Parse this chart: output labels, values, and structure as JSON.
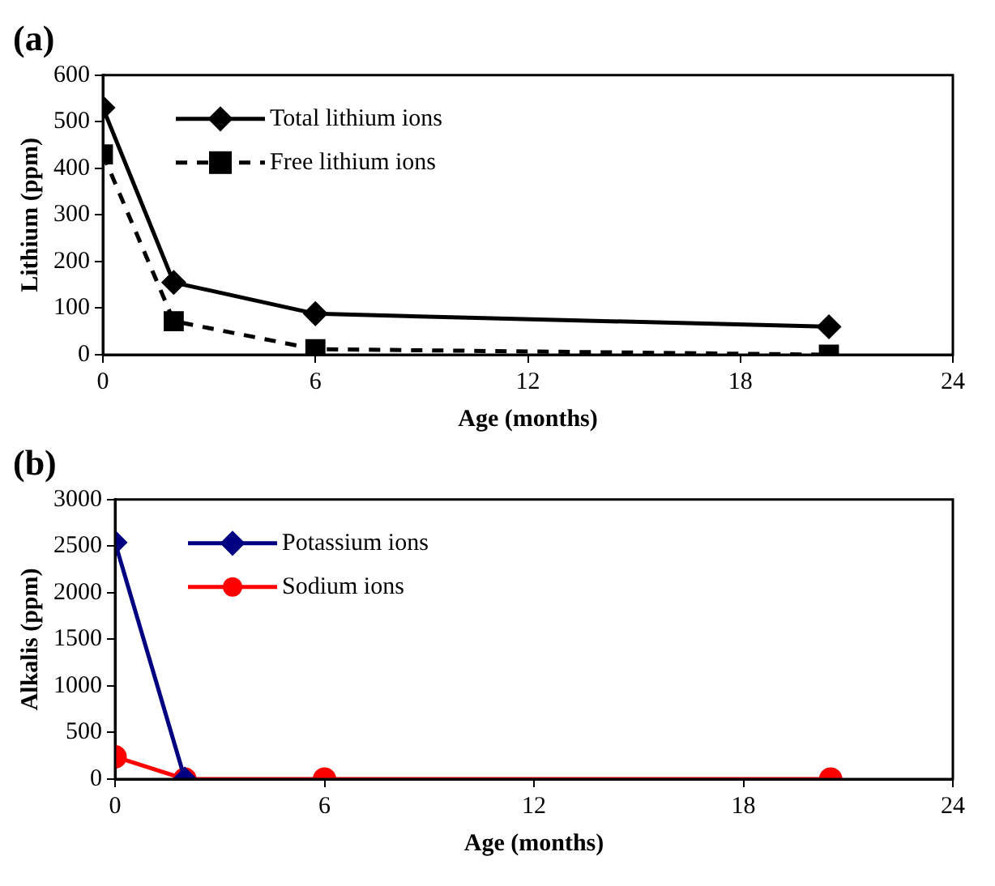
{
  "chart_data": [
    {
      "type": "line",
      "title": "(a)",
      "xlabel": "Age (months)",
      "ylabel": "Lithium (ppm)",
      "xlim": [
        0,
        24
      ],
      "xticks": [
        0,
        6,
        12,
        18,
        24
      ],
      "ylim": [
        0,
        600
      ],
      "yticks": [
        0,
        100,
        200,
        300,
        400,
        500,
        600
      ],
      "grid": false,
      "legend": "top left",
      "series": [
        {
          "name": "Total lithium ions",
          "color": "#000000",
          "marker": "diamond",
          "line_style": "solid",
          "x": [
            0,
            2,
            6,
            20.5
          ],
          "values": [
            530,
            155,
            88,
            60
          ]
        },
        {
          "name": "Free lithium ions",
          "color": "#000000",
          "marker": "square",
          "line_style": "dashed",
          "x": [
            0,
            2,
            6,
            20.5
          ],
          "values": [
            430,
            72,
            12,
            0
          ]
        }
      ]
    },
    {
      "type": "line",
      "title": "(b)",
      "xlabel": "Age (months)",
      "ylabel": "Alkalis (ppm)",
      "xlim": [
        0,
        24
      ],
      "xticks": [
        0,
        6,
        12,
        18,
        24
      ],
      "ylim": [
        0,
        3000
      ],
      "yticks": [
        0,
        500,
        1000,
        1500,
        2000,
        2500,
        3000
      ],
      "grid": false,
      "legend": "top left",
      "series": [
        {
          "name": "Potassium ions",
          "color": "#000080",
          "marker": "diamond",
          "line_style": "solid",
          "x": [
            0,
            2
          ],
          "values": [
            2540,
            0
          ]
        },
        {
          "name": "Sodium ions",
          "color": "#ff0000",
          "marker": "circle",
          "line_style": "solid",
          "x": [
            0,
            2,
            6,
            20.5
          ],
          "values": [
            240,
            0,
            0,
            0
          ]
        }
      ]
    }
  ]
}
